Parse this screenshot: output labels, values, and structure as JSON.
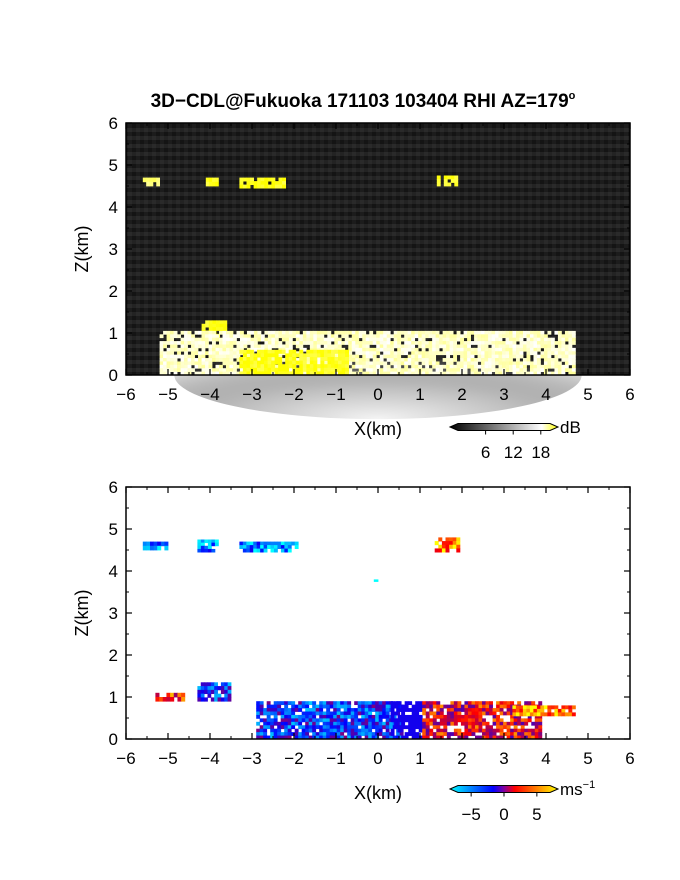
{
  "title": "3D−CDL@Fukuoka 171103 103404 RHI AZ=179",
  "title_degree": "o",
  "chart_data": [
    {
      "type": "heatmap",
      "panel": "reflectivity",
      "xlabel": "X(km)",
      "ylabel": "Z(km)",
      "xlim": [
        -6,
        6
      ],
      "ylim": [
        0,
        6
      ],
      "xticks": [
        "−6",
        "−5",
        "−4",
        "−3",
        "−2",
        "−1",
        "0",
        "1",
        "2",
        "3",
        "4",
        "5",
        "6"
      ],
      "yticks": [
        "0",
        "1",
        "2",
        "3",
        "4",
        "5",
        "6"
      ],
      "colorbar": {
        "unit": "dB",
        "ticks": [
          "6",
          "12",
          "18"
        ],
        "range": [
          0,
          20
        ],
        "colors": [
          "#000000",
          "#ffffff",
          "#ffff00"
        ]
      },
      "background_color": "#202020",
      "features": [
        {
          "x": [
            -5.6,
            -5.2
          ],
          "z": [
            4.5,
            4.7
          ],
          "value": 16
        },
        {
          "x": [
            -4.1,
            -3.8
          ],
          "z": [
            4.5,
            4.7
          ],
          "value": 19
        },
        {
          "x": [
            -3.3,
            -2.2
          ],
          "z": [
            4.45,
            4.7
          ],
          "value": 19
        },
        {
          "x": [
            1.4,
            1.9
          ],
          "z": [
            4.5,
            4.75
          ],
          "value": 19
        },
        {
          "x": [
            -4.2,
            -3.6
          ],
          "z": [
            0.9,
            1.3
          ],
          "value": 19
        },
        {
          "x": [
            -5.2,
            4.7
          ],
          "z": [
            0,
            1.05
          ],
          "value": 12
        },
        {
          "x": [
            -3.3,
            -0.7
          ],
          "z": [
            0,
            0.6
          ],
          "value": 19
        }
      ]
    },
    {
      "type": "heatmap",
      "panel": "doppler velocity",
      "xlabel": "X(km)",
      "ylabel": "Z(km)",
      "xlim": [
        -6,
        6
      ],
      "ylim": [
        0,
        6
      ],
      "xticks": [
        "−6",
        "−5",
        "−4",
        "−3",
        "−2",
        "−1",
        "0",
        "1",
        "2",
        "3",
        "4",
        "5",
        "6"
      ],
      "yticks": [
        "0",
        "1",
        "2",
        "3",
        "4",
        "5",
        "6"
      ],
      "colorbar": {
        "unit": "ms",
        "unit_exponent": "−1",
        "ticks": [
          "−5",
          "0",
          "5"
        ],
        "range": [
          -7,
          7
        ],
        "colors": [
          "#00ffff",
          "#0000ff",
          "#ff0000",
          "#ffff00"
        ]
      },
      "features": [
        {
          "x": [
            -5.6,
            -5.0
          ],
          "z": [
            4.5,
            4.7
          ],
          "value": -5
        },
        {
          "x": [
            -4.3,
            -3.8
          ],
          "z": [
            4.45,
            4.75
          ],
          "value": -5
        },
        {
          "x": [
            -3.3,
            -1.9
          ],
          "z": [
            4.45,
            4.7
          ],
          "value": -5
        },
        {
          "x": [
            1.35,
            1.95
          ],
          "z": [
            4.45,
            4.8
          ],
          "value": 5
        },
        {
          "x": [
            -0.1,
            0.0
          ],
          "z": [
            3.75,
            3.8
          ],
          "value": -6
        },
        {
          "x": [
            -5.3,
            -4.6
          ],
          "z": [
            0.9,
            1.1
          ],
          "value": 3
        },
        {
          "x": [
            -4.3,
            -3.5
          ],
          "z": [
            0.9,
            1.35
          ],
          "value": -3
        },
        {
          "x": [
            -2.9,
            0.6
          ],
          "z": [
            0,
            0.9
          ],
          "value": -3
        },
        {
          "x": [
            0.3,
            3.9
          ],
          "z": [
            0,
            0.9
          ],
          "value": 2
        },
        {
          "x": [
            3.2,
            4.7
          ],
          "z": [
            0.55,
            0.8
          ],
          "value": 5
        }
      ]
    }
  ]
}
